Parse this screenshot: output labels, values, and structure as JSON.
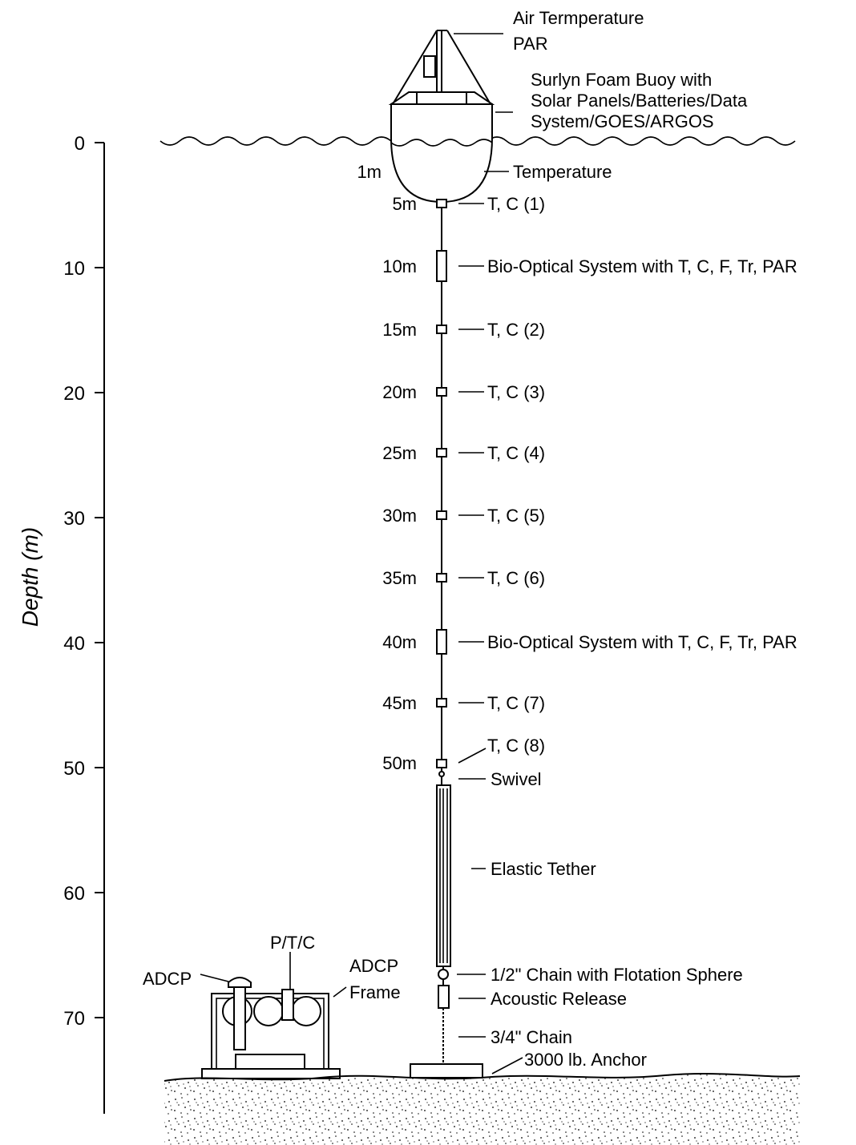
{
  "axis": {
    "title": "Depth (m)",
    "ticks": [
      "0",
      "10",
      "20",
      "30",
      "40",
      "50",
      "60",
      "70"
    ]
  },
  "buoy": {
    "top_labels": [
      "Air Termperature",
      "PAR"
    ],
    "body_label": [
      "Surlyn Foam Buoy with",
      "Solar Panels/Batteries/Data",
      "System/GOES/ARGOS"
    ],
    "depth_1m": "1m",
    "temperature": "Temperature"
  },
  "instruments": [
    {
      "depth": "5m",
      "label": "T, C (1)"
    },
    {
      "depth": "10m",
      "label": "Bio-Optical System with T, C, F, Tr, PAR"
    },
    {
      "depth": "15m",
      "label": "T, C (2)"
    },
    {
      "depth": "20m",
      "label": "T, C (3)"
    },
    {
      "depth": "25m",
      "label": "T, C (4)"
    },
    {
      "depth": "30m",
      "label": "T, C (5)"
    },
    {
      "depth": "35m",
      "label": "T, C (6)"
    },
    {
      "depth": "40m",
      "label": "Bio-Optical System with T, C, F, Tr, PAR"
    },
    {
      "depth": "45m",
      "label": "T, C (7)"
    },
    {
      "depth": "50m",
      "label": "T, C (8)"
    }
  ],
  "lower": {
    "swivel": "Swivel",
    "tether": "Elastic Tether",
    "chain_float": "1/2\" Chain with Flotation Sphere",
    "release": "Acoustic Release",
    "chain": "3/4\" Chain",
    "anchor": "3000 lb. Anchor"
  },
  "frame": {
    "adcp": "ADCP",
    "ptc": "P/T/C",
    "frame_label": [
      "ADCP",
      "Frame"
    ]
  }
}
